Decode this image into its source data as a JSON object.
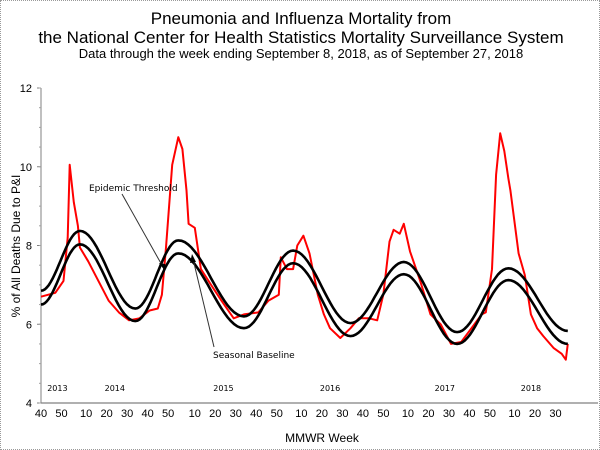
{
  "chart_data": {
    "type": "line",
    "title": [
      "Pneumonia and Influenza Mortality from",
      "the National Center for Health Statistics Mortality Surveillance System"
    ],
    "subtitle": "Data through the week ending September 8, 2018, as of September 27, 2018",
    "xlabel": "MMWR Week",
    "ylabel": "% of All Deaths Due to P&I",
    "ylim": [
      4,
      12
    ],
    "yticks": [
      "4",
      "6",
      "8",
      "10",
      "12"
    ],
    "xticks": [
      {
        "year": 2013,
        "week": 40,
        "label": "40"
      },
      {
        "year": 2013,
        "week": 50,
        "label": "50"
      },
      {
        "year": 2014,
        "week": 10,
        "label": "10"
      },
      {
        "year": 2014,
        "week": 20,
        "label": "20"
      },
      {
        "year": 2014,
        "week": 30,
        "label": "30"
      },
      {
        "year": 2014,
        "week": 40,
        "label": "40"
      },
      {
        "year": 2014,
        "week": 50,
        "label": "50"
      },
      {
        "year": 2015,
        "week": 10,
        "label": "10"
      },
      {
        "year": 2015,
        "week": 20,
        "label": "20"
      },
      {
        "year": 2015,
        "week": 30,
        "label": "30"
      },
      {
        "year": 2015,
        "week": 40,
        "label": "40"
      },
      {
        "year": 2015,
        "week": 50,
        "label": "50"
      },
      {
        "year": 2016,
        "week": 10,
        "label": "10"
      },
      {
        "year": 2016,
        "week": 20,
        "label": "20"
      },
      {
        "year": 2016,
        "week": 30,
        "label": "30"
      },
      {
        "year": 2016,
        "week": 40,
        "label": "40"
      },
      {
        "year": 2016,
        "week": 50,
        "label": "50"
      },
      {
        "year": 2017,
        "week": 10,
        "label": "10"
      },
      {
        "year": 2017,
        "week": 20,
        "label": "20"
      },
      {
        "year": 2017,
        "week": 30,
        "label": "30"
      },
      {
        "year": 2017,
        "week": 40,
        "label": "40"
      },
      {
        "year": 2017,
        "week": 50,
        "label": "50"
      },
      {
        "year": 2018,
        "week": 10,
        "label": "10"
      },
      {
        "year": 2018,
        "week": 20,
        "label": "20"
      },
      {
        "year": 2018,
        "week": 30,
        "label": "30"
      }
    ],
    "year_labels": [
      {
        "year": 2013,
        "week": 48,
        "label": "2013"
      },
      {
        "year": 2014,
        "week": 24,
        "label": "2014"
      },
      {
        "year": 2015,
        "week": 24,
        "label": "2015"
      },
      {
        "year": 2016,
        "week": 24,
        "label": "2016"
      },
      {
        "year": 2017,
        "week": 28,
        "label": "2017"
      },
      {
        "year": 2018,
        "week": 18,
        "label": "2018"
      }
    ],
    "grid": false,
    "series": [
      {
        "id": "pi",
        "color": "#ff0000",
        "x": [
          "2013-40",
          "2013-47",
          "2013-51",
          "2014-01",
          "2014-02",
          "2014-04",
          "2014-06",
          "2014-07",
          "2014-11",
          "2014-16",
          "2014-21",
          "2014-26",
          "2014-31",
          "2014-36",
          "2014-41",
          "2014-45",
          "2014-47",
          "2014-49",
          "2014-52",
          "2015-02",
          "2015-04",
          "2015-06",
          "2015-07",
          "2015-10",
          "2015-13",
          "2015-18",
          "2015-23",
          "2015-29",
          "2015-34",
          "2015-41",
          "2015-46",
          "2015-51",
          "2015-52",
          "2016-03",
          "2016-06",
          "2016-08",
          "2016-11",
          "2016-14",
          "2016-18",
          "2016-21",
          "2016-24",
          "2016-29",
          "2016-34",
          "2016-38",
          "2016-43",
          "2016-47",
          "2016-50",
          "2017-01",
          "2017-03",
          "2017-06",
          "2017-08",
          "2017-11",
          "2017-16",
          "2017-21",
          "2017-26",
          "2017-31",
          "2017-36",
          "2017-41",
          "2017-46",
          "2017-48",
          "2017-51",
          "2018-01",
          "2018-03",
          "2018-05",
          "2018-07",
          "2018-08",
          "2018-12",
          "2018-15",
          "2018-18",
          "2018-21",
          "2018-24",
          "2018-29",
          "2018-33",
          "2018-35",
          "2018-36"
        ],
        "y": [
          6.7,
          6.8,
          7.1,
          8.2,
          10.05,
          9.1,
          8.5,
          7.95,
          7.6,
          7.1,
          6.6,
          6.3,
          6.1,
          6.15,
          6.35,
          6.4,
          6.75,
          7.95,
          10.05,
          10.75,
          10.45,
          9.4,
          8.55,
          8.45,
          7.4,
          7.0,
          6.6,
          6.15,
          6.25,
          6.3,
          6.6,
          6.75,
          7.7,
          7.4,
          7.4,
          8.0,
          8.25,
          7.8,
          6.75,
          6.25,
          5.9,
          5.65,
          5.9,
          6.15,
          6.15,
          6.1,
          6.75,
          8.1,
          8.4,
          8.3,
          8.55,
          7.85,
          7.1,
          6.25,
          6.0,
          5.5,
          5.55,
          5.9,
          6.25,
          6.3,
          7.4,
          9.8,
          10.85,
          10.4,
          9.7,
          9.4,
          7.8,
          7.25,
          6.25,
          5.9,
          5.7,
          5.4,
          5.25,
          5.1,
          5.5
        ]
      },
      {
        "id": "threshold",
        "name": "Epidemic Threshold",
        "color": "#000000",
        "x": [
          "2013-40",
          "2014-07",
          "2014-34",
          "2015-02",
          "2015-34",
          "2016-06",
          "2016-34",
          "2017-08",
          "2017-34",
          "2018-07",
          "2018-36"
        ],
        "y": [
          6.85,
          8.37,
          6.4,
          8.13,
          6.2,
          7.87,
          6.03,
          7.58,
          5.8,
          7.42,
          5.83
        ]
      },
      {
        "id": "baseline",
        "name": "Seasonal Baseline",
        "color": "#000000",
        "x": [
          "2013-40",
          "2014-07",
          "2014-34",
          "2015-02",
          "2015-34",
          "2016-06",
          "2016-34",
          "2017-08",
          "2017-34",
          "2018-07",
          "2018-36"
        ],
        "y": [
          6.5,
          8.03,
          6.08,
          7.8,
          5.9,
          7.55,
          5.7,
          7.27,
          5.5,
          7.12,
          5.5
        ]
      }
    ]
  }
}
